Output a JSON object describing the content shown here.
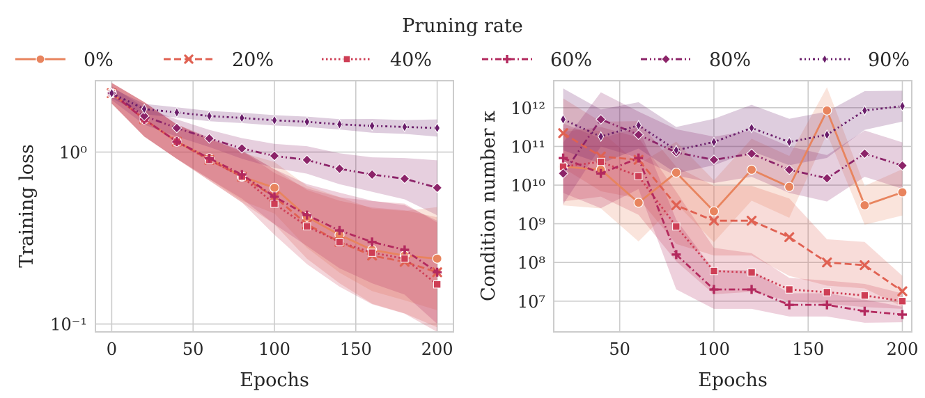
{
  "legend": {
    "title": "Pruning rate",
    "entries": [
      {
        "label": "0%",
        "color": "#e8845e",
        "marker": "circle",
        "dash": "solid"
      },
      {
        "label": "20%",
        "color": "#e06152",
        "marker": "x",
        "dash": "dashed"
      },
      {
        "label": "40%",
        "color": "#ce3e55",
        "marker": "square",
        "dash": "dotted"
      },
      {
        "label": "60%",
        "color": "#b3295e",
        "marker": "plus",
        "dash": "dashdot"
      },
      {
        "label": "80%",
        "color": "#8c2469",
        "marker": "diamond",
        "dash": "dashdotdot"
      },
      {
        "label": "90%",
        "color": "#6a1d6a",
        "marker": "thin-diamond",
        "dash": "dashdotdot2"
      }
    ]
  },
  "chart_data": [
    {
      "type": "line",
      "title": "",
      "xlabel": "Epochs",
      "ylabel": "Training loss",
      "yscale": "log",
      "xlim": [
        -10,
        210
      ],
      "ylim": [
        0.09,
        2.6
      ],
      "xticks": [
        0,
        50,
        100,
        150,
        200
      ],
      "xtick_labels": [
        "0",
        "50",
        "100",
        "150",
        "200"
      ],
      "yticks": [
        0.1,
        1
      ],
      "ytick_labels": [
        "10⁻¹",
        "10⁰"
      ],
      "x": [
        0,
        20,
        40,
        60,
        80,
        100,
        120,
        140,
        160,
        180,
        200
      ],
      "series": [
        {
          "name": "0%",
          "values": [
            2.2,
            1.55,
            1.15,
            0.92,
            0.72,
            0.62,
            0.42,
            0.33,
            0.27,
            0.25,
            0.24
          ],
          "band": [
            0.06,
            0.1,
            0.1,
            0.12,
            0.14,
            0.15,
            0.18,
            0.22,
            0.24,
            0.26,
            0.3
          ]
        },
        {
          "name": "20%",
          "values": [
            2.2,
            1.55,
            1.15,
            0.9,
            0.72,
            0.55,
            0.38,
            0.3,
            0.25,
            0.23,
            0.2
          ],
          "band": [
            0.06,
            0.1,
            0.1,
            0.12,
            0.15,
            0.16,
            0.2,
            0.24,
            0.28,
            0.3,
            0.32
          ]
        },
        {
          "name": "40%",
          "values": [
            2.2,
            1.55,
            1.15,
            0.9,
            0.72,
            0.5,
            0.37,
            0.3,
            0.26,
            0.24,
            0.17
          ],
          "band": [
            0.06,
            0.1,
            0.1,
            0.12,
            0.15,
            0.18,
            0.22,
            0.26,
            0.3,
            0.32,
            0.36
          ]
        },
        {
          "name": "60%",
          "values": [
            2.2,
            1.55,
            1.15,
            0.92,
            0.74,
            0.55,
            0.43,
            0.35,
            0.3,
            0.27,
            0.2
          ],
          "band": [
            0.06,
            0.1,
            0.1,
            0.12,
            0.14,
            0.16,
            0.18,
            0.22,
            0.24,
            0.26,
            0.3
          ]
        },
        {
          "name": "80%",
          "values": [
            2.2,
            1.62,
            1.38,
            1.2,
            1.05,
            0.95,
            0.9,
            0.8,
            0.74,
            0.7,
            0.62
          ],
          "band": [
            0.04,
            0.05,
            0.05,
            0.05,
            0.06,
            0.07,
            0.08,
            0.09,
            0.1,
            0.12,
            0.16
          ]
        },
        {
          "name": "90%",
          "values": [
            2.2,
            1.78,
            1.7,
            1.62,
            1.58,
            1.53,
            1.5,
            1.45,
            1.42,
            1.4,
            1.38
          ],
          "band": [
            0.03,
            0.03,
            0.03,
            0.03,
            0.03,
            0.03,
            0.03,
            0.03,
            0.04,
            0.04,
            0.05
          ]
        }
      ]
    },
    {
      "type": "line",
      "title": "",
      "xlabel": "Epochs",
      "ylabel": "Condition number κ",
      "yscale": "log",
      "xlim": [
        15,
        205
      ],
      "ylim": [
        1600000.0,
        5000000000000.0
      ],
      "xticks": [
        50,
        100,
        150,
        200
      ],
      "xtick_labels": [
        "50",
        "100",
        "150",
        "200"
      ],
      "yticks": [
        10000000.0,
        100000000.0,
        1000000000.0,
        10000000000.0,
        100000000000.0,
        1000000000000.0
      ],
      "ytick_labels": [
        "10⁷",
        "10⁸",
        "10⁹",
        "10¹⁰",
        "10¹¹",
        "10¹²"
      ],
      "x": [
        20,
        40,
        60,
        80,
        100,
        120,
        140,
        160,
        180,
        200
      ],
      "series": [
        {
          "name": "0%",
          "values": [
            30000000000.0,
            25000000000.0,
            3500000000.0,
            21000000000.0,
            2100000000.0,
            25000000000.0,
            9000000000.0,
            850000000000.0,
            3000000000.0,
            6500000000.0
          ],
          "band": [
            1.0,
            1.0,
            1.0,
            0.8,
            0.8,
            0.8,
            0.8,
            0.6,
            0.5,
            0.6
          ]
        },
        {
          "name": "20%",
          "values": [
            220000000000.0,
            55000000000.0,
            45000000000.0,
            3000000000.0,
            1200000000.0,
            1200000000.0,
            450000000.0,
            100000000.0,
            85000000.0,
            18000000.0
          ],
          "band": [
            0.9,
            0.9,
            1.0,
            1.0,
            0.9,
            0.9,
            1.0,
            0.6,
            0.6,
            0.4
          ]
        },
        {
          "name": "40%",
          "values": [
            30000000000.0,
            40000000000.0,
            17000000000.0,
            850000000.0,
            60000000.0,
            55000000.0,
            20000000.0,
            17000000.0,
            14000000.0,
            10000000.0
          ],
          "band": [
            0.9,
            0.9,
            1.0,
            0.9,
            0.6,
            0.5,
            0.3,
            0.3,
            0.3,
            0.2
          ]
        },
        {
          "name": "60%",
          "values": [
            50000000000.0,
            20000000000.0,
            50000000000.0,
            160000000.0,
            20000000.0,
            20000000.0,
            8000000.0,
            8000000.0,
            5500000.0,
            4500000.0
          ],
          "band": [
            0.9,
            0.9,
            0.8,
            0.9,
            0.5,
            0.5,
            0.3,
            0.3,
            0.3,
            0.2
          ]
        },
        {
          "name": "80%",
          "values": [
            20000000000.0,
            500000000000.0,
            200000000000.0,
            70000000000.0,
            45000000000.0,
            65000000000.0,
            25000000000.0,
            15000000000.0,
            65000000000.0,
            32000000000.0
          ],
          "band": [
            0.8,
            0.7,
            0.6,
            0.6,
            0.6,
            0.6,
            0.6,
            0.6,
            0.6,
            0.6
          ]
        },
        {
          "name": "90%",
          "values": [
            500000000000.0,
            180000000000.0,
            350000000000.0,
            80000000000.0,
            130000000000.0,
            300000000000.0,
            130000000000.0,
            200000000000.0,
            850000000000.0,
            1100000000000.0
          ],
          "band": [
            0.8,
            0.7,
            0.6,
            0.6,
            0.6,
            0.6,
            0.6,
            0.6,
            0.5,
            0.4
          ]
        }
      ]
    }
  ]
}
